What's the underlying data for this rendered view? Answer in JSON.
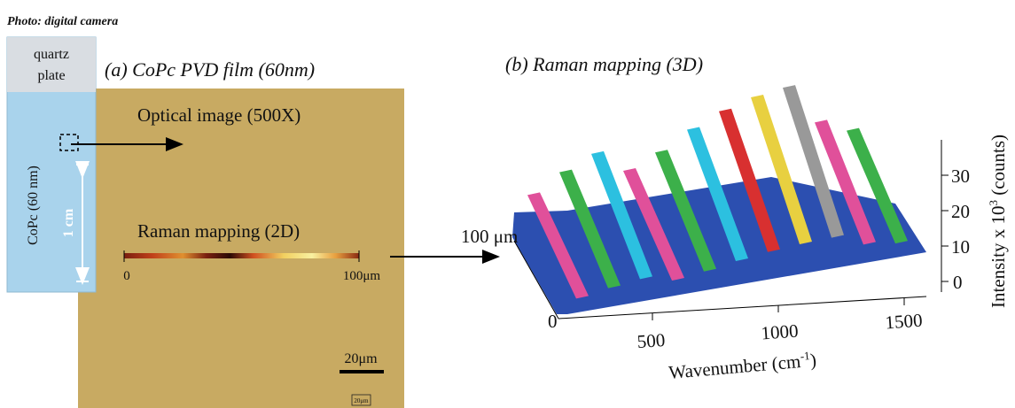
{
  "header": {
    "caption": "Photo: digital camera"
  },
  "photo": {
    "top_label": [
      "quartz",
      "plate"
    ],
    "film_label": "CoPc (60 nm)",
    "scale_label": "1 cm"
  },
  "panel_a": {
    "title": "(a) CoPc PVD film (60nm)",
    "image_label": "Optical image (500X)",
    "mapping_label": "Raman mapping (2D)",
    "line_start": "0",
    "line_end": "100μm",
    "scale_bar": "20μm",
    "scale_box": "20μm"
  },
  "panel_b": {
    "title": "(b) Raman mapping (3D)",
    "depth_ticks": [
      "0",
      "100 μm"
    ],
    "x_ticks": [
      "500",
      "1000",
      "1500"
    ],
    "x_label": {
      "text": "Wavenumber (cm",
      "sup": "-1",
      "end": ")"
    },
    "z_ticks": [
      "0",
      "10",
      "20",
      "30"
    ],
    "z_label": {
      "text": "Intensity x 10",
      "sup": "3",
      "end": " (counts)"
    }
  }
}
